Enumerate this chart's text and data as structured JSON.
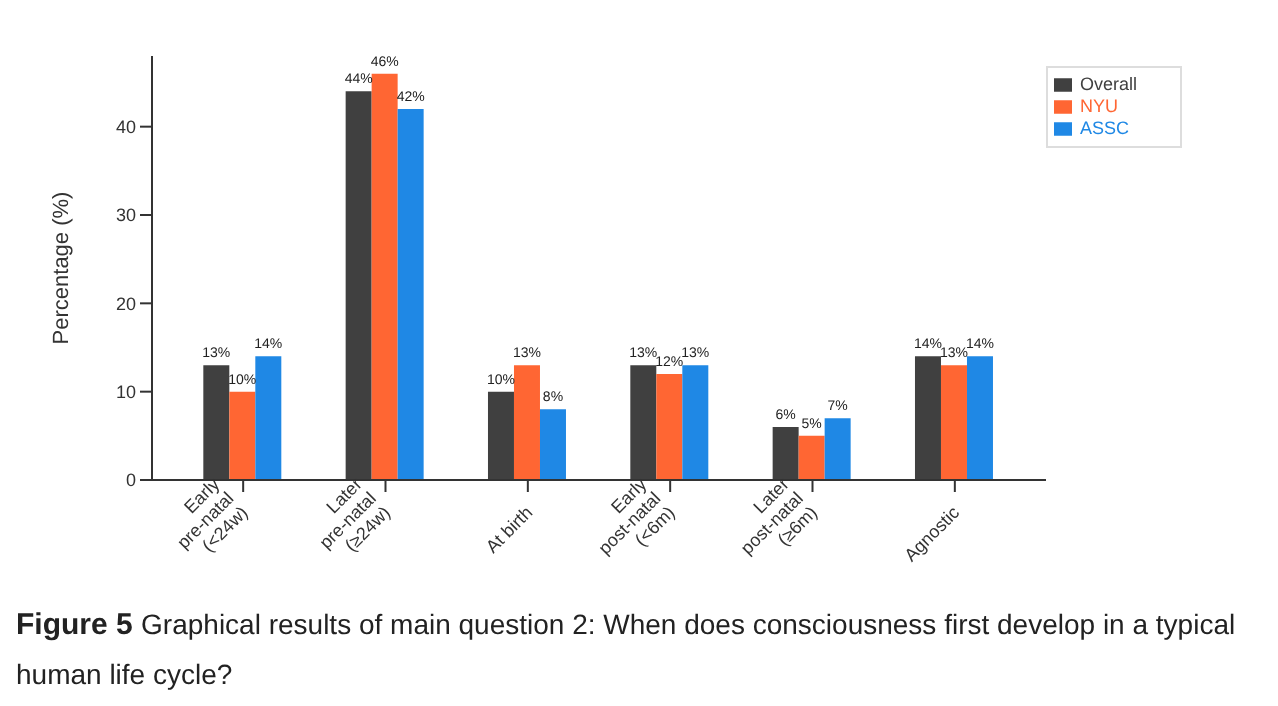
{
  "chart_data": {
    "type": "bar",
    "ylabel": "Percentage (%)",
    "categories": [
      "Early\npre-natal\n(<24w)",
      "Later\npre-natal\n(≥24w)",
      "At birth",
      "Early\npost-natal\n(<6m)",
      "Later\npost-natal\n(≥6m)",
      "Agnostic"
    ],
    "series": [
      {
        "name": "Overall",
        "color": "#404040",
        "values": [
          13,
          44,
          10,
          13,
          6,
          14
        ],
        "value_labels": [
          "13%",
          "44%",
          "10%",
          "13%",
          "6%",
          "14%"
        ]
      },
      {
        "name": "NYU",
        "color": "#ff6633",
        "values": [
          10,
          46,
          13,
          12,
          5,
          13
        ],
        "value_labels": [
          "10%",
          "46%",
          "13%",
          "12%",
          "5%",
          "13%"
        ]
      },
      {
        "name": "ASSC",
        "color": "#1f88e5",
        "values": [
          14,
          42,
          8,
          13,
          7,
          14
        ],
        "value_labels": [
          "14%",
          "42%",
          "8%",
          "13%",
          "7%",
          "14%"
        ]
      }
    ],
    "ylim": [
      0,
      48
    ],
    "yticks": [
      0,
      10,
      20,
      30,
      40
    ],
    "grid": false,
    "legend": "top right",
    "annotations": [
      "Figure 5",
      "Graphical results of main question 2: When does consciousness first develop in a typical human life cycle?"
    ]
  }
}
